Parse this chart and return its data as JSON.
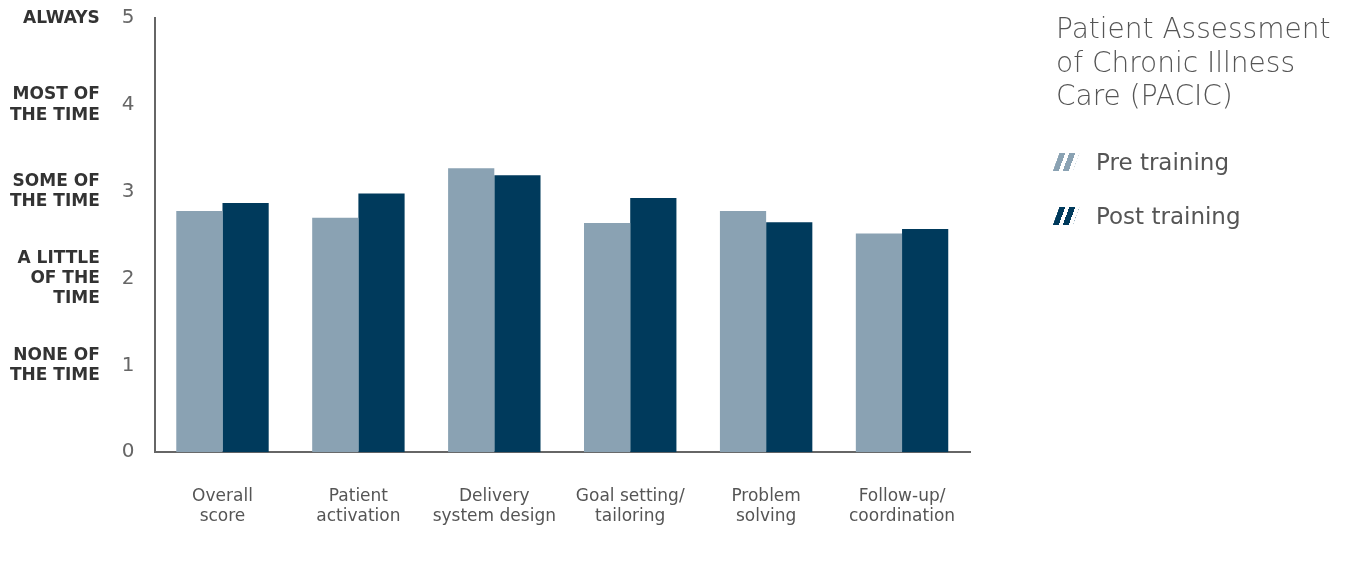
{
  "chart_data": {
    "type": "bar",
    "title": "Patient Assessment of Chronic Illness Care (PACIC)",
    "categories": [
      "Overall\nscore",
      "Patient\nactivation",
      "Delivery\nsystem design",
      "Goal setting/\ntailoring",
      "Problem\nsolving",
      "Follow-up/\ncoordination"
    ],
    "series": [
      {
        "name": "Pre training",
        "color": "#8aa2b3",
        "values": [
          2.78,
          2.7,
          3.27,
          2.64,
          2.78,
          2.52
        ]
      },
      {
        "name": "Post training",
        "color": "#003a5c",
        "values": [
          2.87,
          2.98,
          3.19,
          2.93,
          2.65,
          2.57
        ]
      }
    ],
    "ylim": [
      0,
      5
    ],
    "yticks": [
      0,
      1,
      2,
      3,
      4,
      5
    ],
    "annotations": [
      "NONE OF\nTHE TIME",
      "A LITTLE\nOF THE\nTIME",
      "SOME OF\nTHE TIME",
      "MOST OF\nTHE TIME",
      "ALWAYS"
    ],
    "grid": false,
    "legend": "right"
  }
}
